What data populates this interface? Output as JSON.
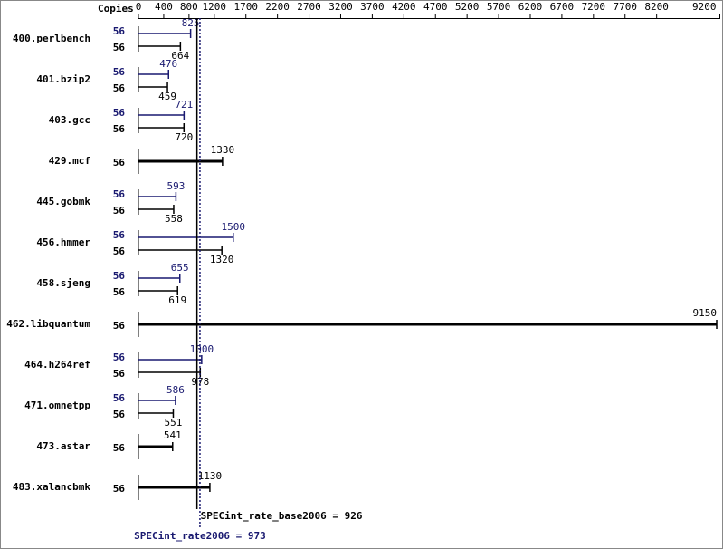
{
  "chart_data": {
    "type": "bar",
    "orientation": "horizontal",
    "copies_label": "Copies",
    "categories": [
      "400.perlbench",
      "401.bzip2",
      "403.gcc",
      "429.mcf",
      "445.gobmk",
      "456.hmmer",
      "458.sjeng",
      "462.libquantum",
      "464.h264ref",
      "471.omnetpp",
      "473.astar",
      "483.xalancbmk"
    ],
    "series": [
      {
        "color": "#191970",
        "copies": [
          56,
          56,
          56,
          null,
          56,
          56,
          56,
          null,
          56,
          56,
          null,
          null
        ],
        "values": [
          825,
          476,
          721,
          null,
          593,
          1500,
          655,
          null,
          1000,
          586,
          null,
          null
        ]
      },
      {
        "color": "#000000",
        "copies": [
          56,
          56,
          56,
          56,
          56,
          56,
          56,
          56,
          56,
          56,
          56,
          56
        ],
        "values": [
          664,
          459,
          720,
          1330,
          558,
          1320,
          619,
          9150,
          978,
          551,
          541,
          1130
        ]
      }
    ],
    "xlim": [
      0,
      9200
    ],
    "xticks": [
      0,
      400,
      800,
      1200,
      1700,
      2200,
      2700,
      3200,
      3700,
      4200,
      4700,
      5200,
      5700,
      6200,
      6700,
      7200,
      7700,
      8200,
      9200
    ],
    "reference_lines": [
      {
        "label": "SPECint_rate_base2006 = 926",
        "value": 926,
        "color": "#000000"
      },
      {
        "label": "SPECint_rate2006 = 973",
        "value": 973,
        "color": "#191970"
      }
    ]
  }
}
